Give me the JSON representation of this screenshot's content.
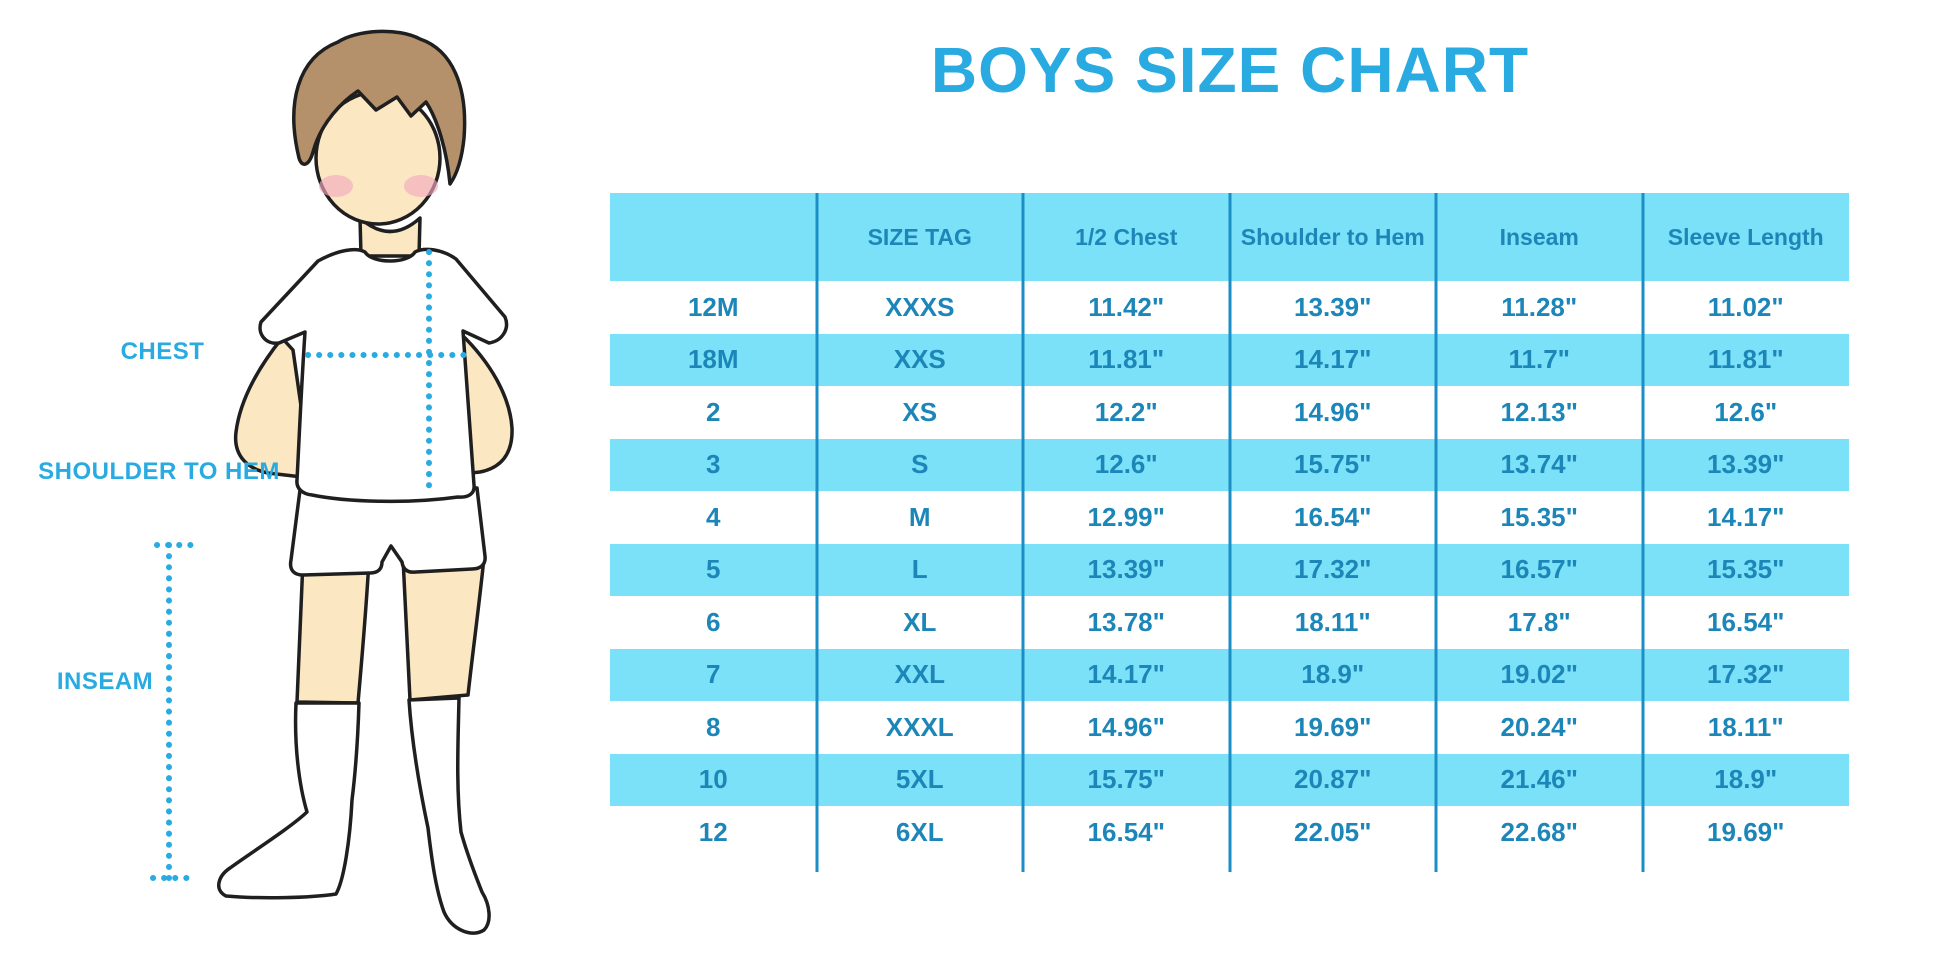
{
  "title": "BOYS SIZE CHART",
  "figure_labels": {
    "chest": "CHEST",
    "shoulder_to_hem": "SHOULDER TO HEM",
    "inseam": "INSEAM"
  },
  "colors": {
    "accent": "#29ABE2",
    "table_fill": "#7BE1F8",
    "table_line": "#1B8EC6",
    "table_text": "#1D86B8",
    "skin": "#FBE7C2",
    "hair": "#B5916B",
    "blush": "#F2A9BE",
    "outline": "#1F1F1F"
  },
  "chart_data": {
    "type": "table",
    "title": "BOYS SIZE CHART",
    "columns": [
      "",
      "SIZE TAG",
      "1/2 Chest",
      "Shoulder to Hem",
      "Inseam",
      "Sleeve Length"
    ],
    "rows": [
      [
        "12M",
        "XXXS",
        "11.42\"",
        "13.39\"",
        "11.28\"",
        "11.02\""
      ],
      [
        "18M",
        "XXS",
        "11.81\"",
        "14.17\"",
        "11.7\"",
        "11.81\""
      ],
      [
        "2",
        "XS",
        "12.2\"",
        "14.96\"",
        "12.13\"",
        "12.6\""
      ],
      [
        "3",
        "S",
        "12.6\"",
        "15.75\"",
        "13.74\"",
        "13.39\""
      ],
      [
        "4",
        "M",
        "12.99\"",
        "16.54\"",
        "15.35\"",
        "14.17\""
      ],
      [
        "5",
        "L",
        "13.39\"",
        "17.32\"",
        "16.57\"",
        "15.35\""
      ],
      [
        "6",
        "XL",
        "13.78\"",
        "18.11\"",
        "17.8\"",
        "16.54\""
      ],
      [
        "7",
        "XXL",
        "14.17\"",
        "18.9\"",
        "19.02\"",
        "17.32\""
      ],
      [
        "8",
        "XXXL",
        "14.96\"",
        "19.69\"",
        "20.24\"",
        "18.11\""
      ],
      [
        "10",
        "5XL",
        "15.75\"",
        "20.87\"",
        "21.46\"",
        "18.9\""
      ],
      [
        "12",
        "6XL",
        "16.54\"",
        "22.05\"",
        "22.68\"",
        "19.69\""
      ]
    ]
  }
}
